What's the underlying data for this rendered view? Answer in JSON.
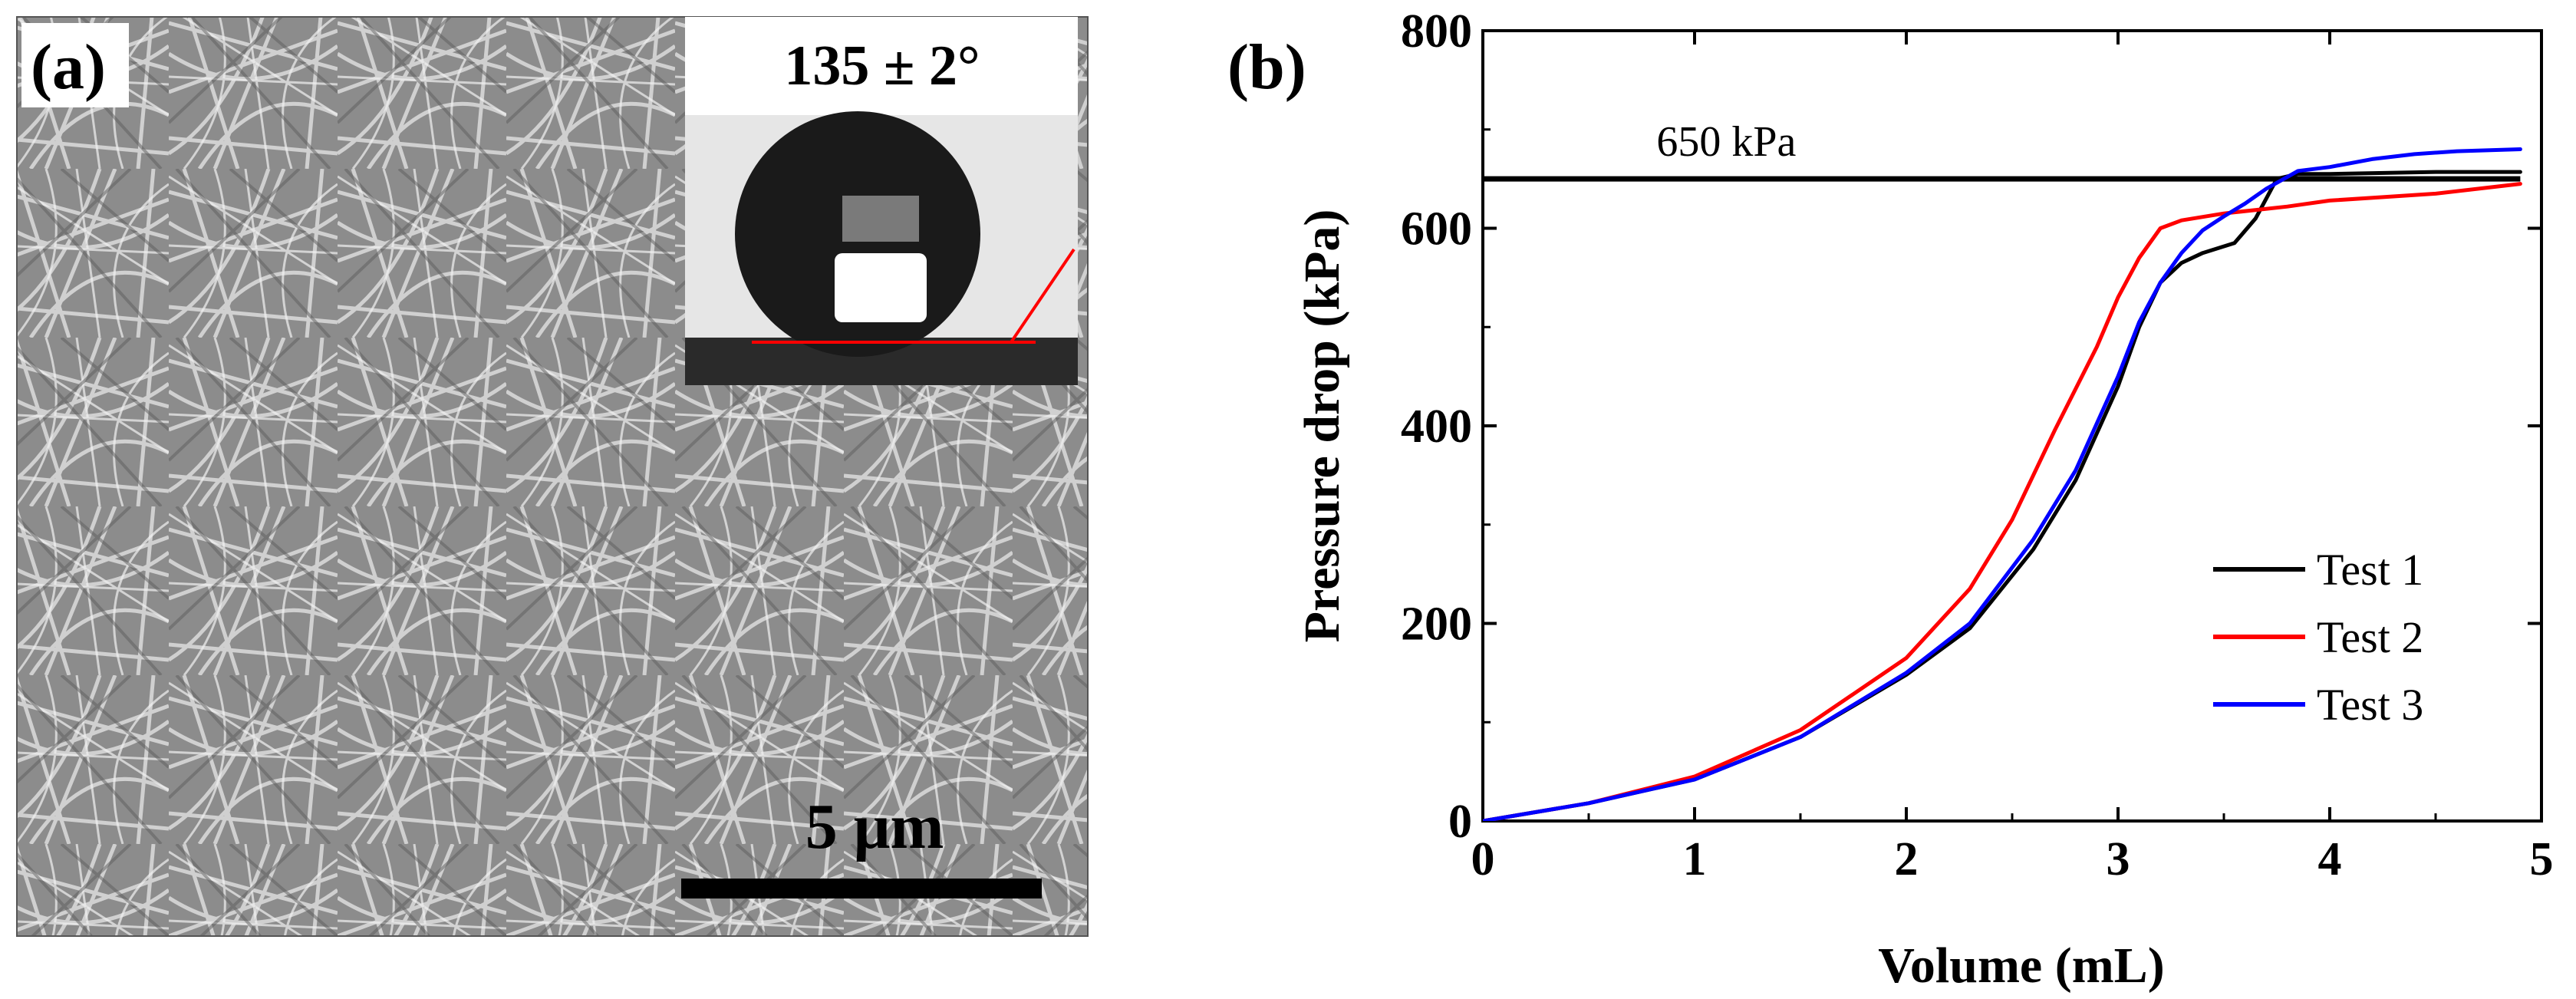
{
  "panel_a": {
    "label": "(a)",
    "contact_angle": "135 ± 2°",
    "scale_bar": "5 μm"
  },
  "chart_data": {
    "type": "line",
    "panel_label": "(b)",
    "xlabel": "Volume (mL)",
    "ylabel": "Pressure drop (kPa)",
    "xlim": [
      0,
      5
    ],
    "ylim": [
      0,
      800
    ],
    "xticks": [
      0,
      1,
      2,
      3,
      4,
      5
    ],
    "yticks": [
      0,
      200,
      400,
      600,
      800
    ],
    "legend_position": "center-right",
    "reference_line": {
      "y": 650,
      "x_start": 0,
      "x_end": 4.9,
      "label": "650 kPa",
      "color": "#000000"
    },
    "series": [
      {
        "name": "Test 1",
        "color": "#000000",
        "points": [
          [
            0,
            0
          ],
          [
            0.5,
            18
          ],
          [
            1,
            42
          ],
          [
            1.5,
            85
          ],
          [
            2,
            148
          ],
          [
            2.3,
            195
          ],
          [
            2.6,
            275
          ],
          [
            2.8,
            345
          ],
          [
            3.0,
            440
          ],
          [
            3.1,
            500
          ],
          [
            3.2,
            545
          ],
          [
            3.3,
            565
          ],
          [
            3.4,
            575
          ],
          [
            3.55,
            585
          ],
          [
            3.65,
            610
          ],
          [
            3.75,
            650
          ],
          [
            3.85,
            655
          ],
          [
            4.0,
            655
          ],
          [
            4.5,
            657
          ],
          [
            4.9,
            657
          ]
        ]
      },
      {
        "name": "Test 2",
        "color": "#ff0000",
        "points": [
          [
            0,
            0
          ],
          [
            0.5,
            18
          ],
          [
            1,
            45
          ],
          [
            1.5,
            92
          ],
          [
            2,
            165
          ],
          [
            2.3,
            235
          ],
          [
            2.5,
            305
          ],
          [
            2.7,
            395
          ],
          [
            2.9,
            480
          ],
          [
            3.0,
            530
          ],
          [
            3.1,
            570
          ],
          [
            3.2,
            600
          ],
          [
            3.3,
            608
          ],
          [
            3.5,
            615
          ],
          [
            3.8,
            622
          ],
          [
            4.0,
            628
          ],
          [
            4.5,
            635
          ],
          [
            4.9,
            645
          ]
        ]
      },
      {
        "name": "Test 3",
        "color": "#0000ff",
        "points": [
          [
            0,
            0
          ],
          [
            0.5,
            18
          ],
          [
            1,
            42
          ],
          [
            1.5,
            85
          ],
          [
            2,
            150
          ],
          [
            2.3,
            200
          ],
          [
            2.6,
            285
          ],
          [
            2.8,
            355
          ],
          [
            3.0,
            450
          ],
          [
            3.1,
            505
          ],
          [
            3.2,
            545
          ],
          [
            3.3,
            575
          ],
          [
            3.4,
            598
          ],
          [
            3.5,
            612
          ],
          [
            3.6,
            625
          ],
          [
            3.7,
            640
          ],
          [
            3.85,
            658
          ],
          [
            4.0,
            662
          ],
          [
            4.2,
            670
          ],
          [
            4.4,
            675
          ],
          [
            4.6,
            678
          ],
          [
            4.9,
            680
          ]
        ]
      }
    ]
  }
}
